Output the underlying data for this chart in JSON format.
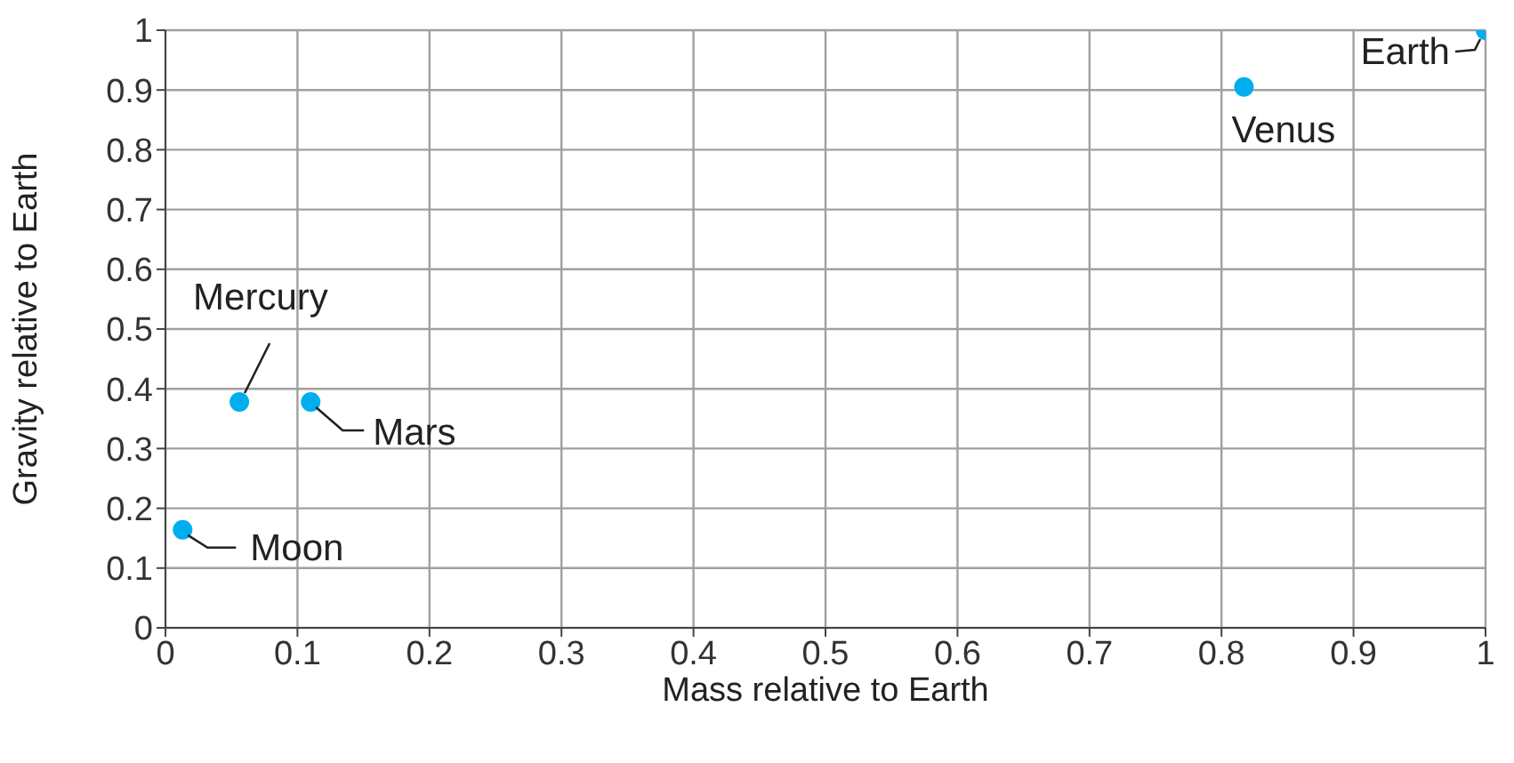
{
  "chart_data": {
    "type": "scatter",
    "xlabel": "Mass relative to Earth",
    "ylabel": "Gravity relative to Earth",
    "x": [
      0.013,
      0.056,
      0.11,
      0.817,
      1
    ],
    "series": [
      {
        "color": "#00aeef",
        "values": [
          0.164,
          0.378,
          0.378,
          0.905,
          1
        ]
      }
    ],
    "xlim": [
      0,
      1
    ],
    "ylim": [
      0,
      1
    ],
    "xticks": [
      0,
      0.1,
      0.2,
      0.3,
      0.4,
      0.5,
      0.6,
      0.7,
      0.8,
      0.9,
      1
    ],
    "yticks": [
      0,
      0.1,
      0.2,
      0.3,
      0.4,
      0.5,
      0.6,
      0.7,
      0.8,
      0.9,
      1
    ],
    "grid": true,
    "marker": "circle",
    "legend": false,
    "annotations": [
      {
        "text": "Moon",
        "x": 0.013,
        "y": 0.164
      },
      {
        "text": "Mercury",
        "x": 0.056,
        "y": 0.378
      },
      {
        "text": "Mars",
        "x": 0.11,
        "y": 0.378
      },
      {
        "text": "Venus",
        "x": 0.817,
        "y": 0.905
      },
      {
        "text": "Earth",
        "x": 1,
        "y": 1
      }
    ]
  }
}
